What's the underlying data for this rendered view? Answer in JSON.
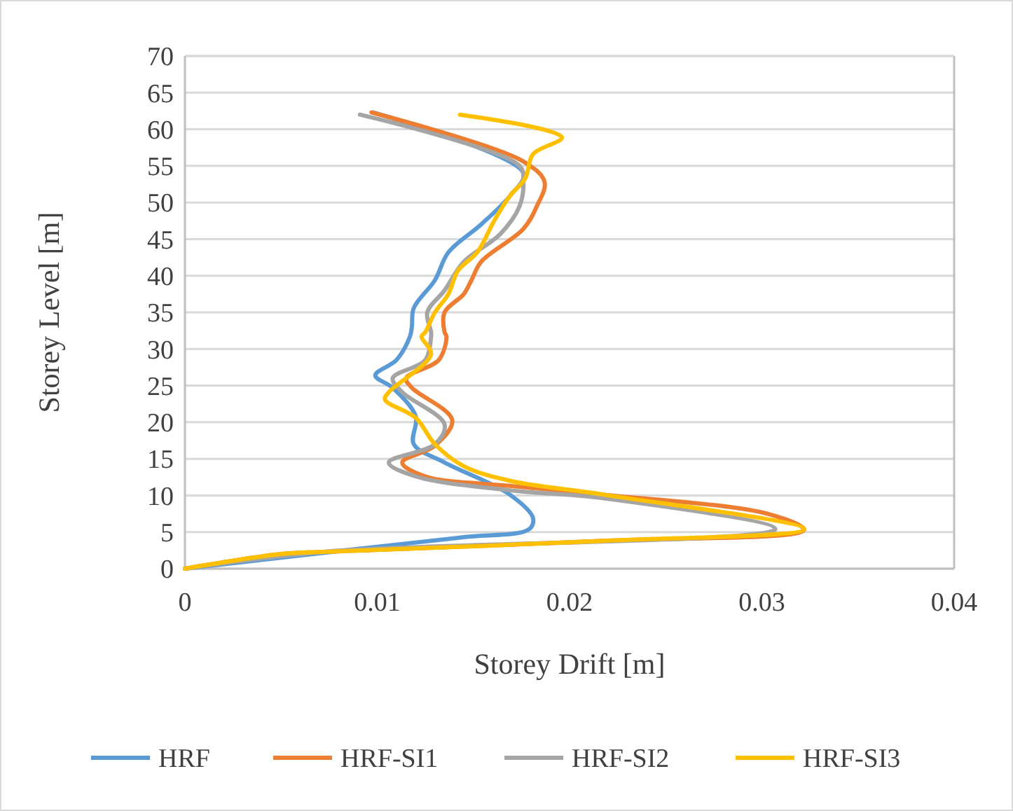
{
  "chart_data": {
    "type": "line",
    "xlabel": "Storey Drift [m]",
    "ylabel": "Storey Level [m]",
    "xlim": [
      0,
      0.04
    ],
    "xticks": [
      0,
      0.01,
      0.02,
      0.03,
      0.04
    ],
    "ylim": [
      0,
      70
    ],
    "yticks": [
      0,
      5,
      10,
      15,
      20,
      25,
      30,
      35,
      40,
      45,
      50,
      55,
      60,
      65,
      70
    ],
    "grid": "y",
    "legend": "bottom",
    "marker": "none",
    "line_style": "solid",
    "series": [
      {
        "name": "HRF",
        "color": "#5b9bd5",
        "x": [
          0.0098,
          0.0176,
          0.0169,
          0.0154,
          0.0137,
          0.013,
          0.0119,
          0.0118,
          0.0117,
          0.011,
          0.0099,
          0.0108,
          0.012,
          0.0119,
          0.0135,
          0.0169,
          0.0181,
          0.0179,
          0.0145,
          0.01,
          0.0072,
          0.005,
          0
        ],
        "values": [
          62.3,
          54,
          50.9,
          47,
          43.2,
          39.4,
          35.6,
          33,
          31.7,
          28.5,
          26.4,
          24.7,
          20.8,
          17,
          14.5,
          10.1,
          6.9,
          5.4,
          4.3,
          3,
          null,
          null,
          0
        ]
      },
      {
        "name": "HRF-SI1",
        "color": "#ed7d31",
        "x": [
          0.0097,
          0.0176,
          0.0187,
          0.0183,
          0.0176,
          0.0154,
          0.0149,
          0.0145,
          0.0135,
          0.0135,
          0.0136,
          0.0132,
          0.0115,
          0.0118,
          0.0139,
          0.013,
          0.0113,
          0.0125,
          0.0169,
          0.0218,
          0.0303,
          0.0322,
          0.0218,
          0.0072,
          0.005,
          0
        ],
        "values": [
          62.3,
          55.6,
          52.8,
          49.5,
          46.4,
          41.9,
          39.4,
          37.5,
          35,
          32.3,
          31.7,
          28.5,
          26,
          24.7,
          20.3,
          16.8,
          14.5,
          12.6,
          11.3,
          10.1,
          7.5,
          5.3,
          3.8,
          2.3,
          2,
          0
        ]
      },
      {
        "name": "HRF-SI2",
        "color": "#a5a5a5",
        "x": [
          0.0091,
          0.0174,
          0.0176,
          0.0174,
          0.0164,
          0.0145,
          0.0135,
          0.0126,
          0.0128,
          0.0128,
          0.0125,
          0.0108,
          0.0113,
          0.0135,
          0.013,
          0.0106,
          0.012,
          0.0169,
          0.0218,
          0.0307,
          0.0218,
          0.0072,
          0.005,
          0
        ],
        "values": [
          62,
          55,
          52.8,
          49.5,
          45.7,
          41.9,
          38,
          35,
          32.3,
          31.7,
          28.5,
          26,
          24.1,
          19.7,
          17,
          14.5,
          12.6,
          10.7,
          9.6,
          5.4,
          null,
          2.3,
          null,
          0
        ]
      },
      {
        "name": "HRF-SI3",
        "color": "#ffc000",
        "x": [
          0.0143,
          0.0196,
          0.0181,
          0.0177,
          0.0169,
          0.0161,
          0.0152,
          0.0142,
          0.0137,
          0.013,
          0.0125,
          0.0123,
          0.0128,
          0.0106,
          0.0104,
          0.012,
          0.013,
          0.0145,
          0.0169,
          0.0218,
          0.0322,
          0.0218,
          0.0072,
          0.005,
          0
        ],
        "values": [
          62,
          58.9,
          56.6,
          53.3,
          50.9,
          47.6,
          43.2,
          40.7,
          37.5,
          35,
          32.3,
          31.7,
          29.3,
          24.1,
          23.1,
          20.6,
          17,
          14,
          12,
          10.1,
          5.4,
          3.8,
          2.3,
          2,
          0
        ]
      }
    ]
  }
}
